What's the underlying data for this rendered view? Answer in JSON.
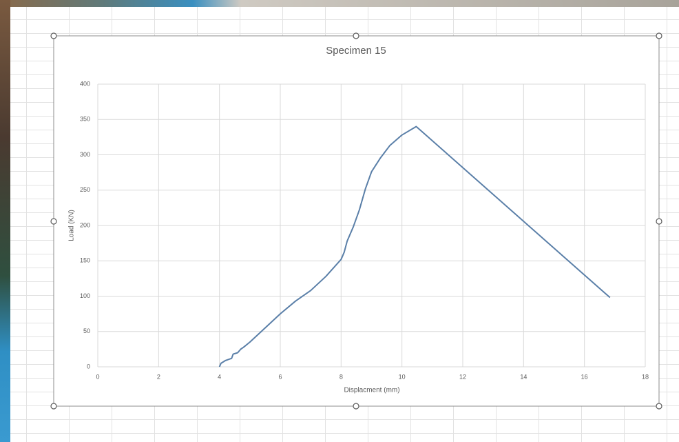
{
  "chart_data": {
    "type": "line",
    "title": "Specimen 15",
    "x_label": "Displacment (mm)",
    "y_label": "Load (KN)",
    "x": [
      4,
      4.05,
      4.2,
      4.4,
      4.45,
      4.6,
      4.7,
      4.8,
      5,
      5.5,
      6,
      6.5,
      7,
      7.5,
      8,
      8.1,
      8.2,
      8.4,
      8.6,
      8.8,
      9,
      9.3,
      9.6,
      10,
      10.47,
      16.84
    ],
    "values": [
      0,
      5,
      9,
      12,
      18,
      20,
      25,
      28,
      35,
      55,
      75,
      93,
      108,
      128,
      152,
      162,
      178,
      198,
      222,
      252,
      276,
      296,
      313,
      328,
      340,
      98
    ],
    "color": "#5a7fa8",
    "xlim": [
      0,
      18
    ],
    "xticks": [
      0,
      2,
      4,
      6,
      8,
      10,
      12,
      14,
      16,
      18
    ],
    "ylim": [
      0,
      400
    ],
    "yticks": [
      0,
      50,
      100,
      150,
      200,
      250,
      300,
      350,
      400
    ],
    "grid": true
  }
}
